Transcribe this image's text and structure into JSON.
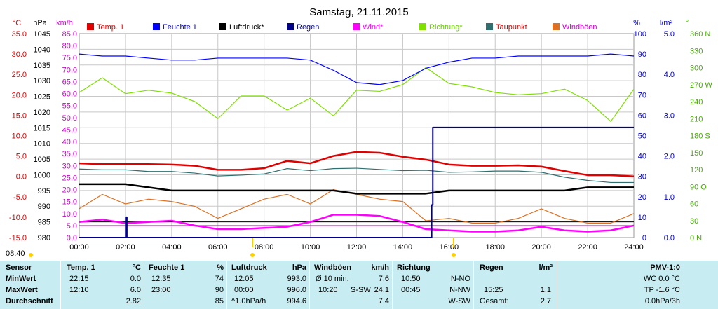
{
  "chart_data": {
    "type": "line",
    "title": "Samstag, 21.11.2015",
    "time_start": "08:40",
    "x_ticks": [
      "00:00",
      "02:00",
      "04:00",
      "06:00",
      "08:00",
      "10:00",
      "12:00",
      "14:00",
      "16:00",
      "18:00",
      "20:00",
      "22:00",
      "24:00"
    ],
    "legend": [
      {
        "name": "Temp. 1",
        "color": "#e00000"
      },
      {
        "name": "Feuchte 1",
        "color": "#0000ff"
      },
      {
        "name": "Luftdruck*",
        "color": "#000000"
      },
      {
        "name": "Regen",
        "color": "#00008b"
      },
      {
        "name": "Wind*",
        "color": "#ff00ff"
      },
      {
        "name": "Richtung*",
        "color": "#80e000"
      },
      {
        "name": "Taupunkt",
        "color": "#2f6f6f"
      },
      {
        "name": "Windböen",
        "color": "#e07020"
      }
    ],
    "axes": {
      "temp": {
        "label": "°C",
        "color": "#e00000",
        "ticks": [
          "35.0",
          "30.0",
          "25.0",
          "20.0",
          "15.0",
          "10.0",
          "5.0",
          "0.0",
          "-5.0",
          "-10.0",
          "-15.0"
        ],
        "range": [
          -15,
          35
        ]
      },
      "pressure": {
        "label": "hPa",
        "color": "#000000",
        "ticks": [
          "1045",
          "1040",
          "1035",
          "1030",
          "1025",
          "1020",
          "1015",
          "1010",
          "1005",
          "1000",
          "995",
          "990",
          "985",
          "980"
        ],
        "range": [
          980,
          1045
        ]
      },
      "wind": {
        "label": "km/h",
        "color": "#cc00cc",
        "ticks": [
          "85.0",
          "80.0",
          "75.0",
          "70.0",
          "65.0",
          "60.0",
          "55.0",
          "50.0",
          "45.0",
          "40.0",
          "35.0",
          "30.0",
          "25.0",
          "20.0",
          "15.0",
          "10.0",
          "5.0",
          "0.0"
        ],
        "range": [
          0,
          85
        ]
      },
      "humidity": {
        "label": "%",
        "color": "#0000cc",
        "ticks": [
          "100",
          "90",
          "80",
          "70",
          "60",
          "50",
          "40",
          "30",
          "20",
          "10",
          "0"
        ],
        "range": [
          0,
          100
        ]
      },
      "rain": {
        "label": "l/m²",
        "color": "#0000cc",
        "ticks": [
          "5.0",
          "4.0",
          "3.0",
          "2.0",
          "1.0",
          "0.0"
        ],
        "range": [
          0,
          5
        ]
      },
      "direction": {
        "label": "°",
        "color": "#44aa00",
        "ticks": [
          "360 N",
          "330",
          "300",
          "270 W",
          "240",
          "210",
          "180 S",
          "150",
          "120",
          "90 O",
          "60",
          "30",
          "0 N"
        ],
        "range": [
          0,
          360
        ]
      }
    },
    "series": [
      {
        "name": "Temp. 1",
        "axis": "temp",
        "x": [
          0,
          1,
          2,
          3,
          4,
          5,
          6,
          7,
          8,
          9,
          10,
          11,
          12,
          13,
          14,
          15,
          16,
          17,
          18,
          19,
          20,
          21,
          22,
          23,
          24
        ],
        "values": [
          3.2,
          3.0,
          3.0,
          3.0,
          2.9,
          2.6,
          1.6,
          1.6,
          2.0,
          3.8,
          3.2,
          5.0,
          6.0,
          5.8,
          4.8,
          4.1,
          2.9,
          2.6,
          2.6,
          2.7,
          2.4,
          1.3,
          0.3,
          0.3,
          0.0
        ]
      },
      {
        "name": "Feuchte 1",
        "axis": "humidity",
        "x": [
          0,
          1,
          2,
          3,
          4,
          5,
          6,
          7,
          8,
          9,
          10,
          11,
          12,
          13,
          14,
          15,
          16,
          17,
          18,
          19,
          20,
          21,
          22,
          23,
          24
        ],
        "values": [
          90,
          89,
          89,
          88,
          87,
          87,
          88,
          88,
          88,
          88,
          87,
          82,
          76,
          75,
          77,
          83,
          86,
          88,
          88,
          89,
          89,
          89,
          89,
          90,
          89
        ]
      },
      {
        "name": "Luftdruck*",
        "axis": "pressure",
        "x": [
          0,
          1,
          2,
          3,
          4,
          5,
          6,
          7,
          8,
          9,
          10,
          11,
          12,
          13,
          14,
          15,
          16,
          17,
          18,
          19,
          20,
          21,
          22,
          23,
          24
        ],
        "values": [
          997,
          997,
          997,
          996,
          995,
          995,
          995,
          995,
          995,
          995,
          995,
          995,
          994,
          994,
          994,
          994,
          995,
          995,
          995,
          995,
          995,
          995,
          996,
          996,
          996
        ]
      },
      {
        "name": "Regen",
        "axis": "rain",
        "x": [
          0,
          2,
          2.01,
          2.05,
          2.06,
          15.2,
          15.25,
          15.3,
          15.5,
          15.6,
          24
        ],
        "values": [
          0,
          0,
          0.5,
          0.5,
          0,
          0,
          0.8,
          2.7,
          2.7,
          2.7,
          2.7
        ]
      },
      {
        "name": "Wind*",
        "axis": "wind",
        "x": [
          0,
          1,
          2,
          3,
          4,
          5,
          6,
          7,
          8,
          9,
          10,
          11,
          12,
          13,
          14,
          15,
          16,
          17,
          18,
          19,
          20,
          21,
          22,
          23,
          24
        ],
        "values": [
          6.5,
          7.5,
          6.0,
          6.5,
          7.0,
          5.0,
          3.5,
          3.5,
          4.0,
          4.5,
          6.5,
          9.5,
          9.5,
          9.0,
          6.5,
          3.5,
          3.0,
          2.5,
          2.5,
          3.0,
          4.5,
          3.0,
          2.5,
          3.0,
          5.0
        ]
      },
      {
        "name": "Richtung*",
        "axis": "direction",
        "x": [
          0,
          1,
          2,
          3,
          4,
          5,
          6,
          7,
          8,
          9,
          10,
          11,
          12,
          13,
          14,
          15,
          16,
          17,
          18,
          19,
          20,
          21,
          22,
          23,
          24
        ],
        "values": [
          256,
          282,
          254,
          260,
          255,
          240,
          210,
          250,
          250,
          225,
          246,
          215,
          260,
          258,
          270,
          300,
          272,
          266,
          256,
          252,
          254,
          262,
          242,
          205,
          262
        ]
      },
      {
        "name": "Taupunkt",
        "axis": "temp",
        "x": [
          0,
          1,
          2,
          3,
          4,
          5,
          6,
          7,
          8,
          9,
          10,
          11,
          12,
          13,
          14,
          15,
          16,
          17,
          18,
          19,
          20,
          21,
          22,
          23,
          24
        ],
        "values": [
          1.8,
          1.6,
          1.6,
          1.2,
          1.2,
          0.8,
          0.1,
          0.3,
          0.6,
          1.9,
          1.4,
          1.9,
          2.0,
          1.7,
          1.4,
          1.5,
          1.0,
          1.1,
          1.3,
          1.3,
          1.0,
          -0.2,
          -1.0,
          -1.5,
          -1.5
        ]
      },
      {
        "name": "Windböen",
        "axis": "wind",
        "x": [
          0,
          1,
          2,
          3,
          4,
          5,
          6,
          7,
          8,
          9,
          10,
          11,
          12,
          13,
          14,
          15,
          16,
          17,
          18,
          19,
          20,
          21,
          22,
          23,
          24
        ],
        "values": [
          12,
          18,
          14,
          16,
          15,
          13,
          8,
          12,
          16,
          18,
          14,
          20,
          18,
          16,
          15,
          7,
          8,
          6,
          6,
          8,
          12,
          8,
          6,
          6,
          10
        ]
      }
    ],
    "reference_lines": [
      {
        "axis": "pressure",
        "value": 985,
        "color": "#000000"
      },
      {
        "axis": "wind",
        "value": 5.0,
        "color": "#ff00ff"
      }
    ]
  },
  "summary": {
    "sensor": {
      "header": "Sensor",
      "rows": [
        "MinWert",
        "MaxWert",
        "Durchschnitt"
      ]
    },
    "temp": {
      "header": "Temp. 1",
      "unit": "°C",
      "rows": [
        [
          "22:15",
          "0.0"
        ],
        [
          "12:10",
          "6.0"
        ],
        [
          "",
          "2.82"
        ]
      ]
    },
    "humidity": {
      "header": "Feuchte 1",
      "unit": "%",
      "rows": [
        [
          "12:35",
          "74"
        ],
        [
          "23:00",
          "90"
        ],
        [
          "",
          "85"
        ]
      ]
    },
    "pressure": {
      "header": "Luftdruck",
      "unit": "hPa",
      "rows": [
        [
          "12:05",
          "993.0"
        ],
        [
          "00:00",
          "996.0"
        ],
        [
          "^1.0hPa/h",
          "994.6"
        ]
      ]
    },
    "gusts": {
      "header": "Windböen",
      "unit": "km/h",
      "rows": [
        [
          "Ø 10 min.",
          "",
          "7.6"
        ],
        [
          "10:20",
          "S-SW",
          "24.1"
        ],
        [
          "",
          "",
          "7.4"
        ]
      ]
    },
    "direction": {
      "header": "Richtung",
      "rows": [
        [
          "10:50",
          "N-NO"
        ],
        [
          "00:45",
          "N-NW"
        ],
        [
          "",
          "W-SW"
        ]
      ]
    },
    "rain": {
      "header": "Regen",
      "unit": "l/m²",
      "rows": [
        [
          "",
          ""
        ],
        [
          "15:25",
          "1.1"
        ],
        [
          "Gesamt:",
          "2.7"
        ]
      ]
    },
    "pmv": {
      "header": "PMV-1:0",
      "rows": [
        "WC 0.0 °C",
        "TP -1.6 °C",
        "0.0hPa/3h"
      ]
    }
  }
}
